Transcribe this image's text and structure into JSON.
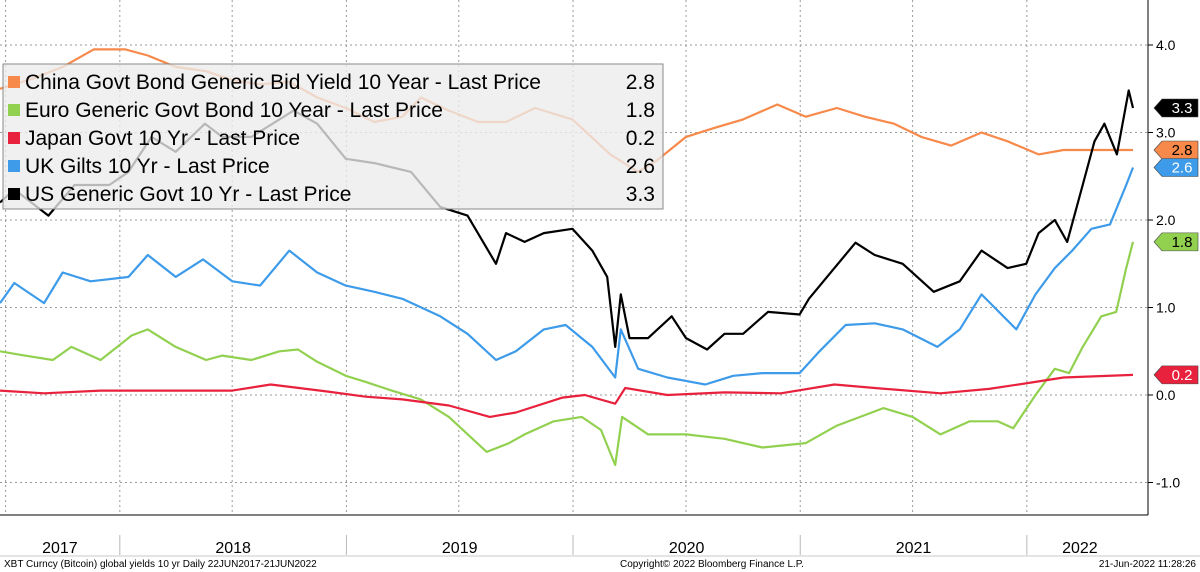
{
  "chart_data": {
    "type": "line",
    "title": "",
    "xlabel": "",
    "ylabel": "",
    "ylim": [
      -1.2,
      4.3
    ],
    "xlim": [
      "2017-06-22",
      "2022-06-21"
    ],
    "y_ticks": [
      {
        "value": 4.0,
        "label": "4.0"
      },
      {
        "value": 3.0,
        "label": "3.0"
      },
      {
        "value": 2.0,
        "label": "2.0"
      },
      {
        "value": 1.0,
        "label": "1.0"
      },
      {
        "value": 0.0,
        "label": "0.0"
      },
      {
        "value": -1.0,
        "label": "-1.0"
      }
    ],
    "x_labels": [
      "2017",
      "2018",
      "2019",
      "2020",
      "2021",
      "2022"
    ],
    "grid": true,
    "legend_position": "top-left",
    "series": [
      {
        "name": "China Govt Bond Generic Bid Yield 10 Year - Last Price",
        "last": "2.8",
        "color": "#f7894a",
        "points": [
          [
            "2017-06-22",
            3.5
          ],
          [
            "2017-08-15",
            3.62
          ],
          [
            "2017-10-01",
            3.75
          ],
          [
            "2017-11-20",
            3.95
          ],
          [
            "2018-01-10",
            3.95
          ],
          [
            "2018-02-15",
            3.88
          ],
          [
            "2018-04-01",
            3.75
          ],
          [
            "2018-05-20",
            3.7
          ],
          [
            "2018-07-01",
            3.6
          ],
          [
            "2018-08-15",
            3.55
          ],
          [
            "2018-10-01",
            3.58
          ],
          [
            "2018-11-15",
            3.4
          ],
          [
            "2018-12-31",
            3.28
          ],
          [
            "2019-02-15",
            3.12
          ],
          [
            "2019-04-01",
            3.18
          ],
          [
            "2019-05-01",
            3.4
          ],
          [
            "2019-06-15",
            3.25
          ],
          [
            "2019-08-01",
            3.12
          ],
          [
            "2019-09-15",
            3.12
          ],
          [
            "2019-11-01",
            3.28
          ],
          [
            "2019-12-31",
            3.15
          ],
          [
            "2020-01-20",
            3.02
          ],
          [
            "2020-03-01",
            2.75
          ],
          [
            "2020-04-15",
            2.55
          ],
          [
            "2020-05-15",
            2.68
          ],
          [
            "2020-07-01",
            2.95
          ],
          [
            "2020-08-15",
            3.05
          ],
          [
            "2020-10-01",
            3.15
          ],
          [
            "2020-11-25",
            3.32
          ],
          [
            "2021-01-10",
            3.18
          ],
          [
            "2021-03-01",
            3.28
          ],
          [
            "2021-04-15",
            3.18
          ],
          [
            "2021-06-01",
            3.1
          ],
          [
            "2021-07-15",
            2.95
          ],
          [
            "2021-09-01",
            2.85
          ],
          [
            "2021-10-20",
            3.0
          ],
          [
            "2021-12-01",
            2.9
          ],
          [
            "2022-01-20",
            2.75
          ],
          [
            "2022-03-01",
            2.8
          ],
          [
            "2022-04-15",
            2.8
          ],
          [
            "2022-06-21",
            2.8
          ]
        ]
      },
      {
        "name": "Euro Generic Govt Bond 10 Year - Last Price",
        "last": "1.8",
        "color": "#92d050",
        "points": [
          [
            "2017-06-22",
            0.5
          ],
          [
            "2017-08-01",
            0.45
          ],
          [
            "2017-09-15",
            0.4
          ],
          [
            "2017-10-15",
            0.55
          ],
          [
            "2017-12-01",
            0.4
          ],
          [
            "2018-01-20",
            0.68
          ],
          [
            "2018-02-15",
            0.75
          ],
          [
            "2018-04-01",
            0.55
          ],
          [
            "2018-05-20",
            0.4
          ],
          [
            "2018-06-15",
            0.45
          ],
          [
            "2018-08-01",
            0.4
          ],
          [
            "2018-09-15",
            0.5
          ],
          [
            "2018-10-15",
            0.52
          ],
          [
            "2018-11-15",
            0.38
          ],
          [
            "2018-12-31",
            0.22
          ],
          [
            "2019-02-01",
            0.15
          ],
          [
            "2019-03-15",
            0.05
          ],
          [
            "2019-05-01",
            -0.05
          ],
          [
            "2019-06-15",
            -0.25
          ],
          [
            "2019-08-15",
            -0.65
          ],
          [
            "2019-09-20",
            -0.55
          ],
          [
            "2019-10-15",
            -0.45
          ],
          [
            "2019-12-01",
            -0.3
          ],
          [
            "2020-01-15",
            -0.25
          ],
          [
            "2020-02-15",
            -0.4
          ],
          [
            "2020-03-09",
            -0.8
          ],
          [
            "2020-03-20",
            -0.25
          ],
          [
            "2020-05-01",
            -0.45
          ],
          [
            "2020-07-01",
            -0.45
          ],
          [
            "2020-09-01",
            -0.5
          ],
          [
            "2020-11-01",
            -0.6
          ],
          [
            "2021-01-10",
            -0.55
          ],
          [
            "2021-03-01",
            -0.35
          ],
          [
            "2021-05-15",
            -0.15
          ],
          [
            "2021-07-01",
            -0.25
          ],
          [
            "2021-08-15",
            -0.45
          ],
          [
            "2021-10-01",
            -0.3
          ],
          [
            "2021-11-15",
            -0.3
          ],
          [
            "2021-12-10",
            -0.38
          ],
          [
            "2022-01-15",
            0.0
          ],
          [
            "2022-02-15",
            0.3
          ],
          [
            "2022-03-10",
            0.25
          ],
          [
            "2022-04-01",
            0.55
          ],
          [
            "2022-05-01",
            0.9
          ],
          [
            "2022-05-25",
            0.95
          ],
          [
            "2022-06-10",
            1.45
          ],
          [
            "2022-06-21",
            1.75
          ]
        ]
      },
      {
        "name": "Japan Govt 10 Yr - Last Price",
        "last": "0.2",
        "color": "#e8213c",
        "points": [
          [
            "2017-06-22",
            0.05
          ],
          [
            "2017-09-01",
            0.02
          ],
          [
            "2017-12-01",
            0.05
          ],
          [
            "2018-03-01",
            0.05
          ],
          [
            "2018-07-01",
            0.05
          ],
          [
            "2018-09-01",
            0.12
          ],
          [
            "2018-12-01",
            0.04
          ],
          [
            "2019-02-01",
            -0.02
          ],
          [
            "2019-04-01",
            -0.05
          ],
          [
            "2019-06-15",
            -0.12
          ],
          [
            "2019-08-20",
            -0.25
          ],
          [
            "2019-10-01",
            -0.2
          ],
          [
            "2019-12-15",
            -0.03
          ],
          [
            "2020-01-20",
            0.0
          ],
          [
            "2020-03-09",
            -0.1
          ],
          [
            "2020-03-25",
            0.08
          ],
          [
            "2020-06-01",
            0.0
          ],
          [
            "2020-09-01",
            0.03
          ],
          [
            "2020-12-01",
            0.02
          ],
          [
            "2021-02-25",
            0.12
          ],
          [
            "2021-05-01",
            0.08
          ],
          [
            "2021-08-15",
            0.02
          ],
          [
            "2021-11-01",
            0.07
          ],
          [
            "2022-01-15",
            0.15
          ],
          [
            "2022-03-01",
            0.2
          ],
          [
            "2022-06-21",
            0.23
          ]
        ]
      },
      {
        "name": "UK Gilts 10 Yr - Last Price",
        "last": "2.6",
        "color": "#3d9be9",
        "points": [
          [
            "2017-06-22",
            1.05
          ],
          [
            "2017-07-15",
            1.28
          ],
          [
            "2017-09-01",
            1.05
          ],
          [
            "2017-10-01",
            1.4
          ],
          [
            "2017-11-15",
            1.3
          ],
          [
            "2018-01-15",
            1.35
          ],
          [
            "2018-02-15",
            1.6
          ],
          [
            "2018-04-01",
            1.35
          ],
          [
            "2018-05-15",
            1.55
          ],
          [
            "2018-07-01",
            1.3
          ],
          [
            "2018-08-15",
            1.25
          ],
          [
            "2018-10-01",
            1.65
          ],
          [
            "2018-11-15",
            1.4
          ],
          [
            "2018-12-31",
            1.25
          ],
          [
            "2019-02-15",
            1.18
          ],
          [
            "2019-04-01",
            1.1
          ],
          [
            "2019-06-01",
            0.9
          ],
          [
            "2019-07-15",
            0.7
          ],
          [
            "2019-08-30",
            0.4
          ],
          [
            "2019-10-01",
            0.5
          ],
          [
            "2019-11-15",
            0.75
          ],
          [
            "2019-12-20",
            0.8
          ],
          [
            "2020-02-01",
            0.55
          ],
          [
            "2020-03-09",
            0.2
          ],
          [
            "2020-03-18",
            0.75
          ],
          [
            "2020-04-15",
            0.3
          ],
          [
            "2020-06-01",
            0.2
          ],
          [
            "2020-08-01",
            0.12
          ],
          [
            "2020-09-15",
            0.22
          ],
          [
            "2020-11-01",
            0.25
          ],
          [
            "2020-12-31",
            0.25
          ],
          [
            "2021-02-01",
            0.5
          ],
          [
            "2021-03-15",
            0.8
          ],
          [
            "2021-05-01",
            0.82
          ],
          [
            "2021-06-15",
            0.75
          ],
          [
            "2021-08-10",
            0.55
          ],
          [
            "2021-09-15",
            0.75
          ],
          [
            "2021-10-20",
            1.15
          ],
          [
            "2021-12-15",
            0.75
          ],
          [
            "2022-01-15",
            1.15
          ],
          [
            "2022-02-15",
            1.45
          ],
          [
            "2022-03-15",
            1.65
          ],
          [
            "2022-04-15",
            1.9
          ],
          [
            "2022-05-15",
            1.95
          ],
          [
            "2022-06-10",
            2.4
          ],
          [
            "2022-06-21",
            2.6
          ]
        ]
      },
      {
        "name": "US Generic Govt 10 Yr - Last Price",
        "last": "3.3",
        "color": "#000000",
        "points": [
          [
            "2017-06-22",
            2.2
          ],
          [
            "2017-07-15",
            2.35
          ],
          [
            "2017-09-08",
            2.05
          ],
          [
            "2017-10-20",
            2.4
          ],
          [
            "2017-12-15",
            2.4
          ],
          [
            "2018-01-15",
            2.55
          ],
          [
            "2018-02-21",
            2.95
          ],
          [
            "2018-04-01",
            2.78
          ],
          [
            "2018-05-18",
            3.1
          ],
          [
            "2018-06-15",
            2.95
          ],
          [
            "2018-08-01",
            2.95
          ],
          [
            "2018-10-08",
            3.25
          ],
          [
            "2018-11-15",
            3.1
          ],
          [
            "2018-12-31",
            2.7
          ],
          [
            "2019-02-15",
            2.65
          ],
          [
            "2019-04-15",
            2.55
          ],
          [
            "2019-06-01",
            2.15
          ],
          [
            "2019-07-15",
            2.05
          ],
          [
            "2019-08-30",
            1.5
          ],
          [
            "2019-09-15",
            1.85
          ],
          [
            "2019-10-15",
            1.75
          ],
          [
            "2019-11-15",
            1.85
          ],
          [
            "2019-12-31",
            1.9
          ],
          [
            "2020-02-01",
            1.65
          ],
          [
            "2020-02-25",
            1.35
          ],
          [
            "2020-03-09",
            0.55
          ],
          [
            "2020-03-18",
            1.15
          ],
          [
            "2020-04-01",
            0.65
          ],
          [
            "2020-05-01",
            0.65
          ],
          [
            "2020-06-08",
            0.9
          ],
          [
            "2020-07-01",
            0.65
          ],
          [
            "2020-08-04",
            0.52
          ],
          [
            "2020-09-01",
            0.7
          ],
          [
            "2020-10-01",
            0.7
          ],
          [
            "2020-11-10",
            0.95
          ],
          [
            "2020-12-31",
            0.92
          ],
          [
            "2021-01-15",
            1.1
          ],
          [
            "2021-02-25",
            1.45
          ],
          [
            "2021-03-31",
            1.74
          ],
          [
            "2021-05-01",
            1.6
          ],
          [
            "2021-06-15",
            1.5
          ],
          [
            "2021-08-04",
            1.18
          ],
          [
            "2021-09-15",
            1.3
          ],
          [
            "2021-10-20",
            1.65
          ],
          [
            "2021-12-01",
            1.45
          ],
          [
            "2021-12-31",
            1.5
          ],
          [
            "2022-01-20",
            1.85
          ],
          [
            "2022-02-15",
            2.0
          ],
          [
            "2022-03-07",
            1.75
          ],
          [
            "2022-04-01",
            2.4
          ],
          [
            "2022-04-20",
            2.9
          ],
          [
            "2022-05-06",
            3.1
          ],
          [
            "2022-05-26",
            2.75
          ],
          [
            "2022-06-14",
            3.48
          ],
          [
            "2022-06-21",
            3.28
          ]
        ]
      }
    ]
  },
  "footer": {
    "left": "XBT Curncy (Bitcoin) global yields 10 yr  Daily 22JUN2017-21JUN2022",
    "center": "Copyright© 2022 Bloomberg Finance L.P.",
    "right": "21-Jun-2022 11:28:26"
  }
}
